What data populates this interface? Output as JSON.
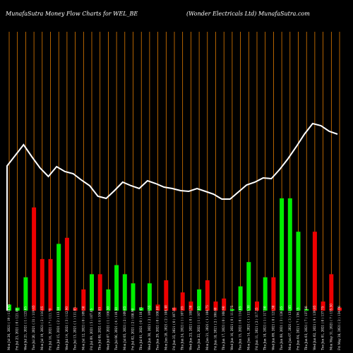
{
  "header": {
    "left": "MunafaSutra  Money Flow  Charts for WEL_BE",
    "right": "(Wonder Electricals Ltd) MunafaSutra.com"
  },
  "chart_data": {
    "type": "bar",
    "title": "Money Flow Charts for WEL_BE",
    "colors": {
      "up": "#00ee00",
      "down": "#ee0000",
      "line": "#ffffff",
      "grid": "#ff8c00",
      "background": "#000000"
    },
    "bars": [
      {
        "label": "Mon Jul 26, 2021 ( 19 ) 118.45",
        "value": 2,
        "dir": "up"
      },
      {
        "label": "Fri Jul 23, 2021 ( 0 ) 121.49",
        "value": 1,
        "dir": "up"
      },
      {
        "label": "Wed Jul 21, 2021 ( 1 ) 123.65",
        "value": 11,
        "dir": "up"
      },
      {
        "label": "Tue Jul 20, 2021 ( 31 ) 119.65",
        "value": 34,
        "dir": "down"
      },
      {
        "label": "Mon Jul 19, 2021 ( 2 ) 116.05",
        "value": 17,
        "dir": "down"
      },
      {
        "label": "Fri Jul 16, 2021 ( 7 ) 111.70",
        "value": 17,
        "dir": "down"
      },
      {
        "label": "Thu Jul 15, 2021 ( 2 ) 113.50",
        "value": 22,
        "dir": "up"
      },
      {
        "label": "Wed Jul 14, 2021 ( 3 ) 112.90",
        "value": 24,
        "dir": "down"
      },
      {
        "label": "Tue Jul 13, 2021 ( 1 ) 111.05",
        "value": 1,
        "dir": "down"
      },
      {
        "label": "Mon Jul 12, 2021 ( 0 ) 109.50",
        "value": 7,
        "dir": "down"
      },
      {
        "label": "Fri Jul 09, 2021 ( 5 ) 107.05",
        "value": 12,
        "dir": "up"
      },
      {
        "label": "Thu Jul 08, 2021 ( 4 ) 106.85",
        "value": 12,
        "dir": "down"
      },
      {
        "label": "Wed Jul 07, 2021 ( 1 ) 108.50",
        "value": 7,
        "dir": "up"
      },
      {
        "label": "Tue Jul 06, 2021 ( 4 ) 110.50",
        "value": 15,
        "dir": "up"
      },
      {
        "label": "Mon Jul 05, 2021 ( 2 ) 109.65",
        "value": 12,
        "dir": "up"
      },
      {
        "label": "Fri Jul 02, 2021 ( 2 ) 108.90",
        "value": 9,
        "dir": "up"
      },
      {
        "label": "Thu Jul 01, 2021 ( 0 ) 110.45",
        "value": 1,
        "dir": "up"
      },
      {
        "label": "Wed Jun 30, 2021 ( 2 ) 109.55",
        "value": 9,
        "dir": "up"
      },
      {
        "label": "Tue Jun 29, 2021 ( 0 ) 108.80",
        "value": 2,
        "dir": "down"
      },
      {
        "label": "Mon Jun 28, 2021 ( 2 ) 108.40",
        "value": 10,
        "dir": "down"
      },
      {
        "label": "Fri Jun 25, 2021 ( 0 ) 107.85",
        "value": 1,
        "dir": "down"
      },
      {
        "label": "Thu Jun 24, 2021 ( 1 ) 107.85",
        "value": 6,
        "dir": "down"
      },
      {
        "label": "Wed Jun 23, 2021 ( 0 ) 108.30",
        "value": 3,
        "dir": "down"
      },
      {
        "label": "Tue Jun 22, 2021 ( 1 ) 107.85",
        "value": 7,
        "dir": "up"
      },
      {
        "label": "Mon Jun 21, 2021 ( 1 ) 106.75",
        "value": 10,
        "dir": "down"
      },
      {
        "label": "Fri Jun 18, 2021 ( 2 ) 106.60",
        "value": 3,
        "dir": "down"
      },
      {
        "label": "Thu Jun 17, 2021 ( 0 ) 108.90",
        "value": 4,
        "dir": "down"
      },
      {
        "label": "Wed Jun 16, 2021 ( 0 ) 111.75",
        "value": 0.5,
        "dir": "up"
      },
      {
        "label": "Tue Jun 15, 2021 ( 0 ) 114.65",
        "value": 8,
        "dir": "up"
      },
      {
        "label": "Mon Jun 14, 2021 ( 1 ) 115.30",
        "value": 16,
        "dir": "up"
      },
      {
        "label": "Fri Jun 11, 2021 ( 2 ) 117.25",
        "value": 3,
        "dir": "down"
      },
      {
        "label": "Thu Jun 10, 2021 ( 1 ) 117.50",
        "value": 11,
        "dir": "up"
      },
      {
        "label": "Wed Jun 09, 2021 ( 0 ) 121.30",
        "value": 11,
        "dir": "down"
      },
      {
        "label": "Tue Jun 08, 2021 ( 3 ) 126.35",
        "value": 37,
        "dir": "up"
      },
      {
        "label": "Mon Jun 07, 2021 ( 3 ) 131.05",
        "value": 37,
        "dir": "up"
      },
      {
        "label": "Fri Jun 04, 2021 ( 7 ) 136.15",
        "value": 26,
        "dir": "up"
      },
      {
        "label": "Thu Jun 03, 2021 ( 7 ) 137.80",
        "value": 0.5,
        "dir": "up"
      },
      {
        "label": "Wed Jun 02, 2021 ( 9 ) 139.85",
        "value": 26,
        "dir": "down"
      },
      {
        "label": "Tue Jun 01, 2021 ( 0 ) 137.75",
        "value": 3,
        "dir": "down"
      },
      {
        "label": "Mon May 31, 2021 ( 7 ) 135.50",
        "value": 12,
        "dir": "down"
      },
      {
        "label": "Fri May 28, 2021 ( 2 ) 134.00",
        "value": 1,
        "dir": "down"
      }
    ],
    "line": [
      235,
      220,
      205,
      222,
      238,
      250,
      236,
      243,
      246,
      255,
      263,
      278,
      281,
      270,
      258,
      263,
      267,
      256,
      260,
      265,
      267,
      270,
      271,
      267,
      271,
      275,
      282,
      282,
      272,
      262,
      258,
      252,
      253,
      240,
      225,
      208,
      190,
      175,
      178,
      186,
      190
    ]
  }
}
